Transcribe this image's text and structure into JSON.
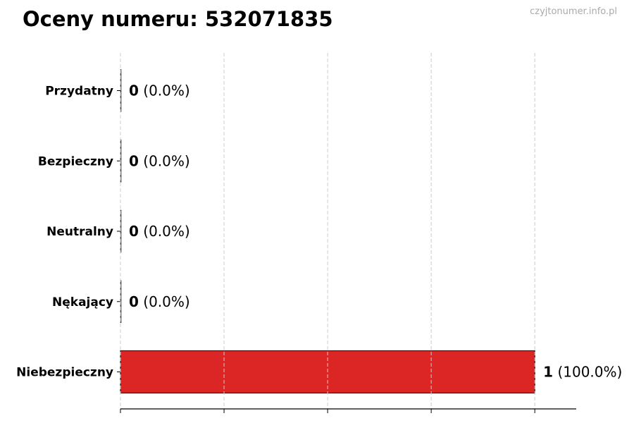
{
  "title": "Oceny numeru: 532071835",
  "watermark": "czyjtonumer.info.pl",
  "chart_data": {
    "type": "bar",
    "orientation": "horizontal",
    "title": "Oceny numeru: 532071835",
    "categories": [
      "Przydatny",
      "Bezpieczny",
      "Neutralny",
      "Nękający",
      "Niebezpieczny"
    ],
    "values": [
      0,
      0,
      0,
      0,
      1
    ],
    "labels": [
      {
        "count": "0",
        "pct": "(0.0%)"
      },
      {
        "count": "0",
        "pct": "(0.0%)"
      },
      {
        "count": "0",
        "pct": "(0.0%)"
      },
      {
        "count": "0",
        "pct": "(0.0%)"
      },
      {
        "count": "1",
        "pct": "(100.0%)"
      }
    ],
    "xlim": [
      0,
      1.1
    ],
    "xticks": [
      0,
      0.25,
      0.5,
      0.75,
      1.0
    ],
    "xtick_labels_shown": false,
    "grid": "x, dashed",
    "bar_color": "#dc2626",
    "edge_color": "#222222"
  }
}
